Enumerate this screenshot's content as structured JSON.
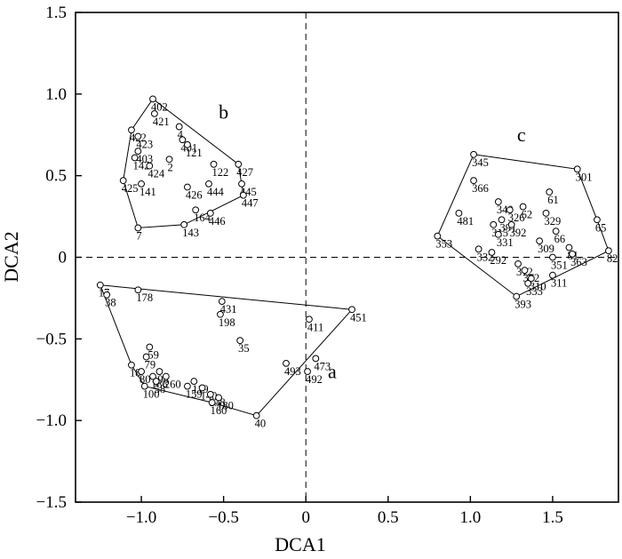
{
  "chart_data": {
    "type": "scatter",
    "xlabel": "DCA1",
    "ylabel": "DCA2",
    "xlim": [
      -1.4,
      1.9
    ],
    "ylim": [
      -1.5,
      1.5
    ],
    "xticks": [
      -1.0,
      -0.5,
      0,
      0.5,
      1.0,
      1.5
    ],
    "xtick_labels": [
      "−1.0",
      "−0.5",
      "0",
      "0.5",
      "1.0",
      "1.5"
    ],
    "yticks": [
      -1.5,
      -1.0,
      -0.5,
      0,
      0.5,
      1.0,
      1.5
    ],
    "ytick_labels": [
      "−1.5",
      "−1.0",
      "−0.5",
      "0",
      "0.5",
      "1.0",
      "1.5"
    ],
    "reference_lines": {
      "x": 0,
      "y": 0,
      "style": "dashed"
    },
    "groups": [
      {
        "label": "a",
        "label_pos": [
          0.16,
          -0.74
        ],
        "hull": [
          "17",
          "451",
          "40",
          "160",
          "100",
          "18"
        ],
        "points": [
          {
            "id": "17",
            "x": -1.25,
            "y": -0.17
          },
          {
            "id": "38",
            "x": -1.21,
            "y": -0.23
          },
          {
            "id": "178",
            "x": -1.02,
            "y": -0.2
          },
          {
            "id": "198",
            "x": -0.52,
            "y": -0.35
          },
          {
            "id": "431",
            "x": -0.51,
            "y": -0.27
          },
          {
            "id": "411",
            "x": 0.02,
            "y": -0.38
          },
          {
            "id": "451",
            "x": 0.28,
            "y": -0.32
          },
          {
            "id": "35",
            "x": -0.4,
            "y": -0.51
          },
          {
            "id": "59",
            "x": -0.95,
            "y": -0.55
          },
          {
            "id": "79",
            "x": -0.97,
            "y": -0.61
          },
          {
            "id": "18",
            "x": -1.06,
            "y": -0.66
          },
          {
            "id": "80",
            "x": -1.0,
            "y": -0.7
          },
          {
            "id": "100",
            "x": -0.98,
            "y": -0.79
          },
          {
            "id": "186",
            "x": -0.93,
            "y": -0.73
          },
          {
            "id": "98",
            "x": -0.89,
            "y": -0.7
          },
          {
            "id": "58",
            "x": -0.91,
            "y": -0.76
          },
          {
            "id": "260",
            "x": -0.85,
            "y": -0.73
          },
          {
            "id": "119",
            "x": -0.68,
            "y": -0.76
          },
          {
            "id": "159",
            "x": -0.72,
            "y": -0.79
          },
          {
            "id": "140",
            "x": -0.63,
            "y": -0.8
          },
          {
            "id": "138",
            "x": -0.58,
            "y": -0.84
          },
          {
            "id": "180",
            "x": -0.53,
            "y": -0.86
          },
          {
            "id": "160",
            "x": -0.57,
            "y": -0.89
          },
          {
            "id": "40",
            "x": -0.3,
            "y": -0.97
          },
          {
            "id": "493",
            "x": -0.12,
            "y": -0.65
          },
          {
            "id": "473",
            "x": 0.06,
            "y": -0.62
          },
          {
            "id": "492",
            "x": 0.01,
            "y": -0.7
          }
        ]
      },
      {
        "label": "b",
        "label_pos": [
          -0.5,
          0.85
        ],
        "hull": [
          "402",
          "427",
          "447",
          "143",
          "7",
          "425",
          "422"
        ],
        "points": [
          {
            "id": "402",
            "x": -0.93,
            "y": 0.97
          },
          {
            "id": "421",
            "x": -0.92,
            "y": 0.88
          },
          {
            "id": "4",
            "x": -0.77,
            "y": 0.8
          },
          {
            "id": "422",
            "x": -1.06,
            "y": 0.78
          },
          {
            "id": "423",
            "x": -1.02,
            "y": 0.74
          },
          {
            "id": "401",
            "x": -0.75,
            "y": 0.72
          },
          {
            "id": "121",
            "x": -0.72,
            "y": 0.69
          },
          {
            "id": "403",
            "x": -1.02,
            "y": 0.65
          },
          {
            "id": "142",
            "x": -1.04,
            "y": 0.61
          },
          {
            "id": "2",
            "x": -0.83,
            "y": 0.6
          },
          {
            "id": "424",
            "x": -0.95,
            "y": 0.56
          },
          {
            "id": "122",
            "x": -0.56,
            "y": 0.57
          },
          {
            "id": "427",
            "x": -0.41,
            "y": 0.57
          },
          {
            "id": "425",
            "x": -1.11,
            "y": 0.47
          },
          {
            "id": "141",
            "x": -1.0,
            "y": 0.45
          },
          {
            "id": "426",
            "x": -0.72,
            "y": 0.43
          },
          {
            "id": "444",
            "x": -0.59,
            "y": 0.45
          },
          {
            "id": "445",
            "x": -0.39,
            "y": 0.45
          },
          {
            "id": "447",
            "x": -0.38,
            "y": 0.38
          },
          {
            "id": "164",
            "x": -0.67,
            "y": 0.29
          },
          {
            "id": "446",
            "x": -0.58,
            "y": 0.27
          },
          {
            "id": "143",
            "x": -0.74,
            "y": 0.2
          },
          {
            "id": "7",
            "x": -1.02,
            "y": 0.18
          }
        ]
      },
      {
        "label": "c",
        "label_pos": [
          1.31,
          0.71
        ],
        "hull": [
          "345",
          "301",
          "65",
          "82",
          "393",
          "353"
        ],
        "points": [
          {
            "id": "345",
            "x": 1.02,
            "y": 0.63
          },
          {
            "id": "301",
            "x": 1.65,
            "y": 0.54
          },
          {
            "id": "366",
            "x": 1.02,
            "y": 0.47
          },
          {
            "id": "61",
            "x": 1.48,
            "y": 0.4
          },
          {
            "id": "340",
            "x": 1.17,
            "y": 0.34
          },
          {
            "id": "326",
            "x": 1.24,
            "y": 0.29
          },
          {
            "id": "62",
            "x": 1.32,
            "y": 0.31
          },
          {
            "id": "329",
            "x": 1.46,
            "y": 0.27
          },
          {
            "id": "481",
            "x": 0.93,
            "y": 0.27
          },
          {
            "id": "391",
            "x": 1.19,
            "y": 0.23
          },
          {
            "id": "315",
            "x": 1.14,
            "y": 0.2
          },
          {
            "id": "392",
            "x": 1.25,
            "y": 0.2
          },
          {
            "id": "331",
            "x": 1.17,
            "y": 0.14
          },
          {
            "id": "65",
            "x": 1.77,
            "y": 0.23
          },
          {
            "id": "66",
            "x": 1.52,
            "y": 0.16
          },
          {
            "id": "309",
            "x": 1.42,
            "y": 0.1
          },
          {
            "id": "353",
            "x": 0.8,
            "y": 0.13
          },
          {
            "id": "81",
            "x": 1.6,
            "y": 0.06
          },
          {
            "id": "82",
            "x": 1.84,
            "y": 0.04
          },
          {
            "id": "363",
            "x": 1.62,
            "y": 0.02
          },
          {
            "id": "332",
            "x": 1.05,
            "y": 0.05
          },
          {
            "id": "292",
            "x": 1.13,
            "y": 0.03
          },
          {
            "id": "351",
            "x": 1.5,
            "y": 0.0
          },
          {
            "id": "312",
            "x": 1.29,
            "y": -0.04
          },
          {
            "id": "372",
            "x": 1.33,
            "y": -0.08
          },
          {
            "id": "310",
            "x": 1.37,
            "y": -0.13
          },
          {
            "id": "311",
            "x": 1.5,
            "y": -0.11
          },
          {
            "id": "333",
            "x": 1.35,
            "y": -0.16
          },
          {
            "id": "393",
            "x": 1.28,
            "y": -0.24
          }
        ]
      }
    ]
  }
}
